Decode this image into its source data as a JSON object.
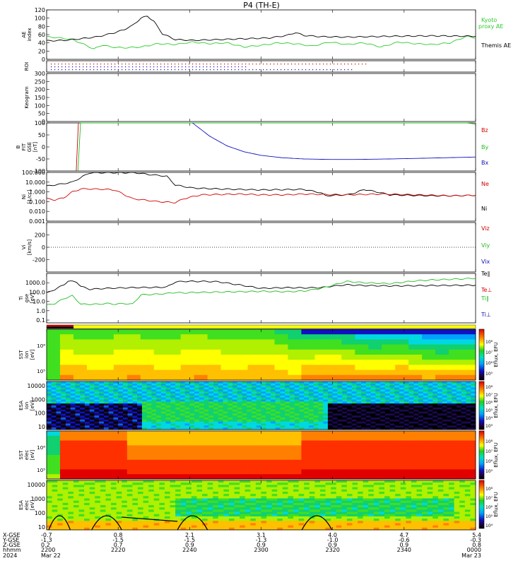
{
  "title": "P4 (TH-E)",
  "colors": {
    "kyoto": "#2ecc2e",
    "themis": "#000000",
    "bz": "#d00000",
    "by": "#22bb22",
    "bx": "#1010c0",
    "ni": "#000000",
    "ne": "#d00000",
    "ti_perp": "#000000",
    "te_perp": "#d00000",
    "t_par": "#22bb22"
  },
  "chart_data": [
    {
      "id": "ae",
      "type": "line",
      "ylabel": "AE index",
      "ylim": [
        0,
        120
      ],
      "yticks": [
        "0",
        "20",
        "40",
        "60",
        "80",
        "100",
        "120"
      ],
      "legend": [
        "Kyoto",
        "proxy AE",
        "Themis AE"
      ],
      "series": [
        {
          "name": "Kyoto proxy AE",
          "color_key": "kyoto",
          "x": [
            0,
            3,
            6,
            9,
            11,
            13,
            15,
            18,
            22,
            26,
            30,
            34,
            38,
            42,
            46,
            50,
            54,
            58,
            62,
            66,
            70,
            74,
            78,
            82,
            86,
            90,
            94,
            98,
            100
          ],
          "y": [
            55,
            52,
            48,
            35,
            25,
            35,
            30,
            28,
            30,
            38,
            36,
            42,
            38,
            40,
            30,
            34,
            40,
            38,
            32,
            42,
            36,
            40,
            30,
            42,
            38,
            36,
            40,
            56,
            52
          ]
        },
        {
          "name": "Themis AE",
          "color_key": "themis",
          "x": [
            0,
            4,
            8,
            12,
            16,
            18,
            20,
            22,
            23.5,
            25,
            27,
            30,
            34,
            40,
            46,
            52,
            56,
            58,
            60,
            64,
            70,
            80,
            90,
            100
          ],
          "y": [
            45,
            46,
            50,
            55,
            65,
            72,
            82,
            100,
            105,
            92,
            62,
            48,
            46,
            48,
            50,
            52,
            58,
            65,
            58,
            55,
            54,
            56,
            57,
            56
          ]
        }
      ]
    },
    {
      "id": "roi",
      "type": "scatter",
      "ylabel": "ROI"
    },
    {
      "id": "keogram",
      "type": "heatmap",
      "ylabel": "Keogram",
      "ylim": [
        0,
        300
      ],
      "yticks": [
        "0",
        "50",
        "100",
        "150",
        "200",
        "250",
        "300"
      ]
    },
    {
      "id": "bfield",
      "type": "line",
      "ylabel": "B FIT GSE [nT]",
      "ylim": [
        -100,
        100
      ],
      "yticks": [
        "-100",
        "-50",
        "0",
        "50",
        "100"
      ],
      "legend": [
        "Bz",
        "By",
        "Bx"
      ],
      "series": [
        {
          "name": "Bz",
          "color_key": "bz",
          "x": [
            6.9,
            7.4
          ],
          "y": [
            -100,
            100
          ]
        },
        {
          "name": "By",
          "color_key": "by",
          "x": [
            7.3,
            7.9,
            98,
            100
          ],
          "y": [
            -100,
            100,
            100,
            95
          ]
        },
        {
          "name": "Bx",
          "color_key": "bx",
          "x": [
            34,
            38,
            42,
            46,
            50,
            55,
            60,
            66,
            72,
            80,
            88,
            95,
            100
          ],
          "y": [
            100,
            45,
            5,
            -20,
            -35,
            -45,
            -50,
            -52,
            -52,
            -50,
            -47,
            -44,
            -42
          ]
        }
      ]
    },
    {
      "id": "density",
      "type": "line",
      "ylabel": "Ni [1/cc]",
      "yscale": "log",
      "ylim": [
        0.001,
        100
      ],
      "yticks": [
        "0.001",
        "0.010",
        "0.100",
        "1.000",
        "10.000",
        "100.000"
      ],
      "legend": [
        "Ne",
        "Ni"
      ],
      "series": [
        {
          "name": "Ni",
          "color_key": "ni",
          "x": [
            0,
            3,
            6,
            8,
            10,
            14,
            18,
            20,
            24,
            28,
            30,
            34,
            40,
            50,
            60,
            64,
            65,
            70,
            72,
            74,
            76,
            78,
            80,
            84,
            90,
            95,
            100
          ],
          "y": [
            4,
            6,
            10,
            30,
            90,
            95,
            90,
            100,
            60,
            40,
            5,
            2.5,
            2,
            1.6,
            1.8,
            0.8,
            0.4,
            0.5,
            0.8,
            1.8,
            1.2,
            0.8,
            0.5,
            0.45,
            0.4,
            0.4,
            0.45
          ]
        },
        {
          "name": "Ne",
          "color_key": "ne",
          "x": [
            0,
            2,
            4,
            6,
            8,
            10,
            14,
            16,
            20,
            26,
            30,
            32,
            36,
            45,
            50,
            56,
            60,
            64,
            70,
            78,
            86,
            94,
            100
          ],
          "y": [
            0.2,
            0.15,
            0.25,
            1.0,
            2.0,
            2.0,
            1.8,
            1.5,
            0.2,
            0.1,
            0.08,
            0.2,
            0.5,
            0.6,
            0.5,
            0.5,
            0.6,
            0.55,
            0.5,
            0.6,
            0.5,
            0.4,
            0.45
          ]
        }
      ]
    },
    {
      "id": "velocity",
      "type": "line",
      "ylabel": "Vi [km/s]",
      "ylim": [
        -400,
        400
      ],
      "yticks": [
        "-200",
        "0",
        "200"
      ],
      "legend": [
        "Viz",
        "Viy",
        "Vix"
      ]
    },
    {
      "id": "temperature",
      "type": "line",
      "ylabel": "Ti gse [eV]",
      "yscale": "log",
      "ylim": [
        0.05,
        10000
      ],
      "yticks": [
        "0.1",
        "1.0",
        "10.0",
        "100.0",
        "1000.0"
      ],
      "legend": [
        "Te∥",
        "Te⊥",
        "Ti∥",
        "Ti⊥"
      ],
      "series": [
        {
          "name": "Te∥",
          "color_key": "ti_perp",
          "x": [
            0,
            2,
            4,
            5,
            7,
            8,
            10,
            14,
            20,
            26,
            28,
            30,
            32,
            36,
            40,
            50,
            56,
            60,
            64,
            66,
            70,
            74,
            80,
            90,
            100
          ],
          "y": [
            80,
            200,
            600,
            1500,
            1200,
            400,
            200,
            250,
            300,
            320,
            350,
            1200,
            1400,
            1400,
            1300,
            250,
            300,
            280,
            300,
            400,
            600,
            500,
            450,
            500,
            550
          ]
        },
        {
          "name": "Ti∥",
          "color_key": "t_par",
          "x": [
            0,
            2,
            4,
            6,
            8,
            12,
            14,
            16,
            18,
            20,
            22,
            26,
            28,
            30,
            32,
            34,
            40,
            50,
            56,
            60,
            64,
            70,
            74,
            80,
            86,
            90,
            96,
            100
          ],
          "y": [
            4,
            6,
            20,
            40,
            5,
            5,
            6,
            5,
            6,
            5,
            50,
            60,
            70,
            90,
            80,
            90,
            100,
            120,
            110,
            130,
            250,
            1400,
            1000,
            800,
            1600,
            2000,
            2500,
            3000
          ]
        }
      ]
    },
    {
      "id": "sst_ion",
      "type": "heatmap",
      "ylabel": "SST ion [eV]",
      "cbar_label": "Eflux, EFU",
      "cbar_ticks": [
        "10⁸",
        "10⁷",
        "10⁶",
        "10⁵"
      ]
    },
    {
      "id": "esa_ion",
      "type": "heatmap",
      "ylabel": "ESA ion [eV]",
      "yticks": [
        "10",
        "100",
        "1000",
        "10000"
      ],
      "cbar_label": "Eflux, EFU",
      "cbar_ticks": [
        "10⁸",
        "10⁷",
        "10⁶",
        "10⁵",
        "10⁴",
        "10³"
      ]
    },
    {
      "id": "sst_elec",
      "type": "heatmap",
      "ylabel": "SST elec [eV]",
      "cbar_label": "Eflux, EFU",
      "cbar_ticks": [
        "10⁸",
        "10⁷",
        "10⁶",
        "10⁵"
      ]
    },
    {
      "id": "esa_elec",
      "type": "heatmap",
      "ylabel": "ESA elec [eV]",
      "yticks": [
        "10",
        "100",
        "1000",
        "10000"
      ],
      "cbar_label": "Eflux, EFU",
      "cbar_ticks": [
        "10⁸",
        "10⁷",
        "10⁶",
        "10⁵",
        "10⁴"
      ]
    }
  ],
  "xaxis": {
    "row_labels": [
      "X-GSE",
      "Y-GSE",
      "Z-GSE",
      "hhmm",
      "2024"
    ],
    "columns": [
      {
        "xgse": "-0.7",
        "ygse": "-1.3",
        "zgse": "0.2",
        "hhmm": "2200",
        "date": "Mar 22"
      },
      {
        "xgse": "0.8",
        "ygse": "-1.5",
        "zgse": "0.7",
        "hhmm": "2220",
        "date": ""
      },
      {
        "xgse": "2.1",
        "ygse": "-1.5",
        "zgse": "0.9",
        "hhmm": "2240",
        "date": ""
      },
      {
        "xgse": "3.1",
        "ygse": "-1.3",
        "zgse": "0.9",
        "hhmm": "2300",
        "date": ""
      },
      {
        "xgse": "4.0",
        "ygse": "-1.0",
        "zgse": "0.9",
        "hhmm": "2320",
        "date": ""
      },
      {
        "xgse": "4.7",
        "ygse": "-0.6",
        "zgse": "0.9",
        "hhmm": "2340",
        "date": ""
      },
      {
        "xgse": "5.4",
        "ygse": "-0.3",
        "zgse": "0.8",
        "hhmm": "0000",
        "date": "Mar 23"
      }
    ]
  }
}
